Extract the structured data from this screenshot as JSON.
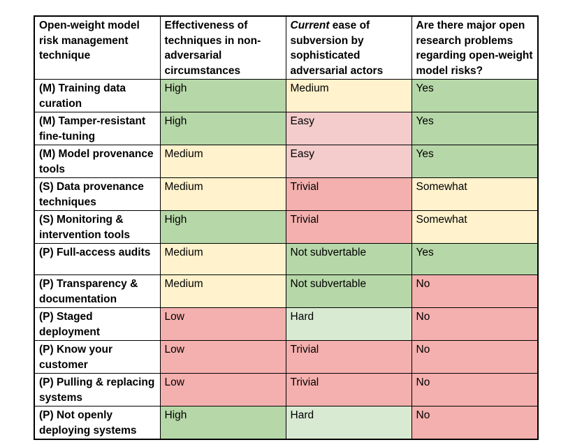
{
  "header": {
    "col1": "Open-weight model risk management technique",
    "col2": "Effectiveness of techniques in non-adversarial circumstances",
    "col3_em": "Current",
    "col3_rest": " ease of subversion by sophisticated adversarial actors",
    "col4": "Are there major open research problems regarding open-weight model risks?"
  },
  "colors": {
    "green": "#b6d7a8",
    "yellow": "#fff2cc",
    "pink": "#f4cccc",
    "red": "#f4b0ae",
    "light_green": "#d9ead3"
  },
  "rows": [
    {
      "technique": "(M) Training data curation",
      "effectiveness": "High",
      "eff_color": "green",
      "subversion": "Medium",
      "sub_color": "yellow",
      "research": "Yes",
      "res_color": "green"
    },
    {
      "technique": "(M) Tamper-resistant fine-tuning",
      "effectiveness": "High",
      "eff_color": "green",
      "subversion": "Easy",
      "sub_color": "pink",
      "research": "Yes",
      "res_color": "green"
    },
    {
      "technique": "(M) Model provenance tools",
      "effectiveness": "Medium",
      "eff_color": "yellow",
      "subversion": "Easy",
      "sub_color": "pink",
      "research": "Yes",
      "res_color": "green"
    },
    {
      "technique": "(S) Data provenance techniques",
      "effectiveness": "Medium",
      "eff_color": "yellow",
      "subversion": "Trivial",
      "sub_color": "red",
      "research": "Somewhat",
      "res_color": "yellow"
    },
    {
      "technique": "(S) Monitoring & intervention tools",
      "effectiveness": "High",
      "eff_color": "green",
      "subversion": "Trivial",
      "sub_color": "red",
      "research": "Somewhat",
      "res_color": "yellow"
    },
    {
      "technique": "(P) Full-access audits",
      "effectiveness": "Medium",
      "eff_color": "yellow",
      "subversion": "Not subvertable",
      "sub_color": "green",
      "research": "Yes",
      "res_color": "green"
    },
    {
      "technique": "(P) Transparency & documentation",
      "effectiveness": "Medium",
      "eff_color": "yellow",
      "subversion": "Not subvertable",
      "sub_color": "green",
      "research": "No",
      "res_color": "red"
    },
    {
      "technique": "(P) Staged deployment",
      "effectiveness": "Low",
      "eff_color": "red",
      "subversion": "Hard",
      "sub_color": "light_green",
      "research": "No",
      "res_color": "red"
    },
    {
      "technique": "(P) Know your customer",
      "effectiveness": "Low",
      "eff_color": "red",
      "subversion": "Trivial",
      "sub_color": "red",
      "research": "No",
      "res_color": "red"
    },
    {
      "technique": "(P) Pulling & replacing systems",
      "effectiveness": "Low",
      "eff_color": "red",
      "subversion": "Trivial",
      "sub_color": "red",
      "research": "No",
      "res_color": "red"
    },
    {
      "technique": "(P) Not openly deploying systems",
      "effectiveness": "High",
      "eff_color": "green",
      "subversion": "Hard",
      "sub_color": "light_green",
      "research": "No",
      "res_color": "red"
    }
  ]
}
